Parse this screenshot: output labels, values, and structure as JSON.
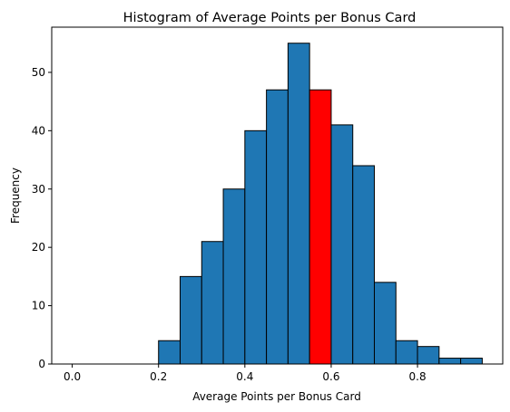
{
  "chart_data": {
    "type": "bar",
    "title": "Histogram of Average Points per Bonus Card",
    "xlabel": "Average Points per Bonus Card",
    "ylabel": "Frequency",
    "xlim": [
      -0.0475,
      0.9975
    ],
    "ylim": [
      0,
      57.75
    ],
    "xticks": [
      0.0,
      0.2,
      0.4,
      0.6,
      0.8
    ],
    "xtick_labels": [
      "0.0",
      "0.2",
      "0.4",
      "0.6",
      "0.8"
    ],
    "yticks": [
      0,
      10,
      20,
      30,
      40,
      50
    ],
    "ytick_labels": [
      "0",
      "10",
      "20",
      "30",
      "40",
      "50"
    ],
    "grid": false,
    "legend": "none",
    "bar_color": "#1f77b4",
    "highlight_color": "#ff0000",
    "edge_color": "#000000",
    "bins": [
      {
        "start": 0.0,
        "end": 0.05,
        "value": 0
      },
      {
        "start": 0.05,
        "end": 0.1,
        "value": 0
      },
      {
        "start": 0.1,
        "end": 0.15,
        "value": 0
      },
      {
        "start": 0.15,
        "end": 0.2,
        "value": 0
      },
      {
        "start": 0.2,
        "end": 0.25,
        "value": 4
      },
      {
        "start": 0.25,
        "end": 0.3,
        "value": 15
      },
      {
        "start": 0.3,
        "end": 0.35,
        "value": 21
      },
      {
        "start": 0.35,
        "end": 0.4,
        "value": 30
      },
      {
        "start": 0.4,
        "end": 0.45,
        "value": 40
      },
      {
        "start": 0.45,
        "end": 0.5,
        "value": 47
      },
      {
        "start": 0.5,
        "end": 0.55,
        "value": 55
      },
      {
        "start": 0.55,
        "end": 0.6,
        "value": 47,
        "highlight": true
      },
      {
        "start": 0.6,
        "end": 0.65,
        "value": 41
      },
      {
        "start": 0.65,
        "end": 0.7,
        "value": 34
      },
      {
        "start": 0.7,
        "end": 0.75,
        "value": 14
      },
      {
        "start": 0.75,
        "end": 0.8,
        "value": 4
      },
      {
        "start": 0.8,
        "end": 0.85,
        "value": 3
      },
      {
        "start": 0.85,
        "end": 0.9,
        "value": 1
      },
      {
        "start": 0.9,
        "end": 0.95,
        "value": 1
      }
    ]
  }
}
